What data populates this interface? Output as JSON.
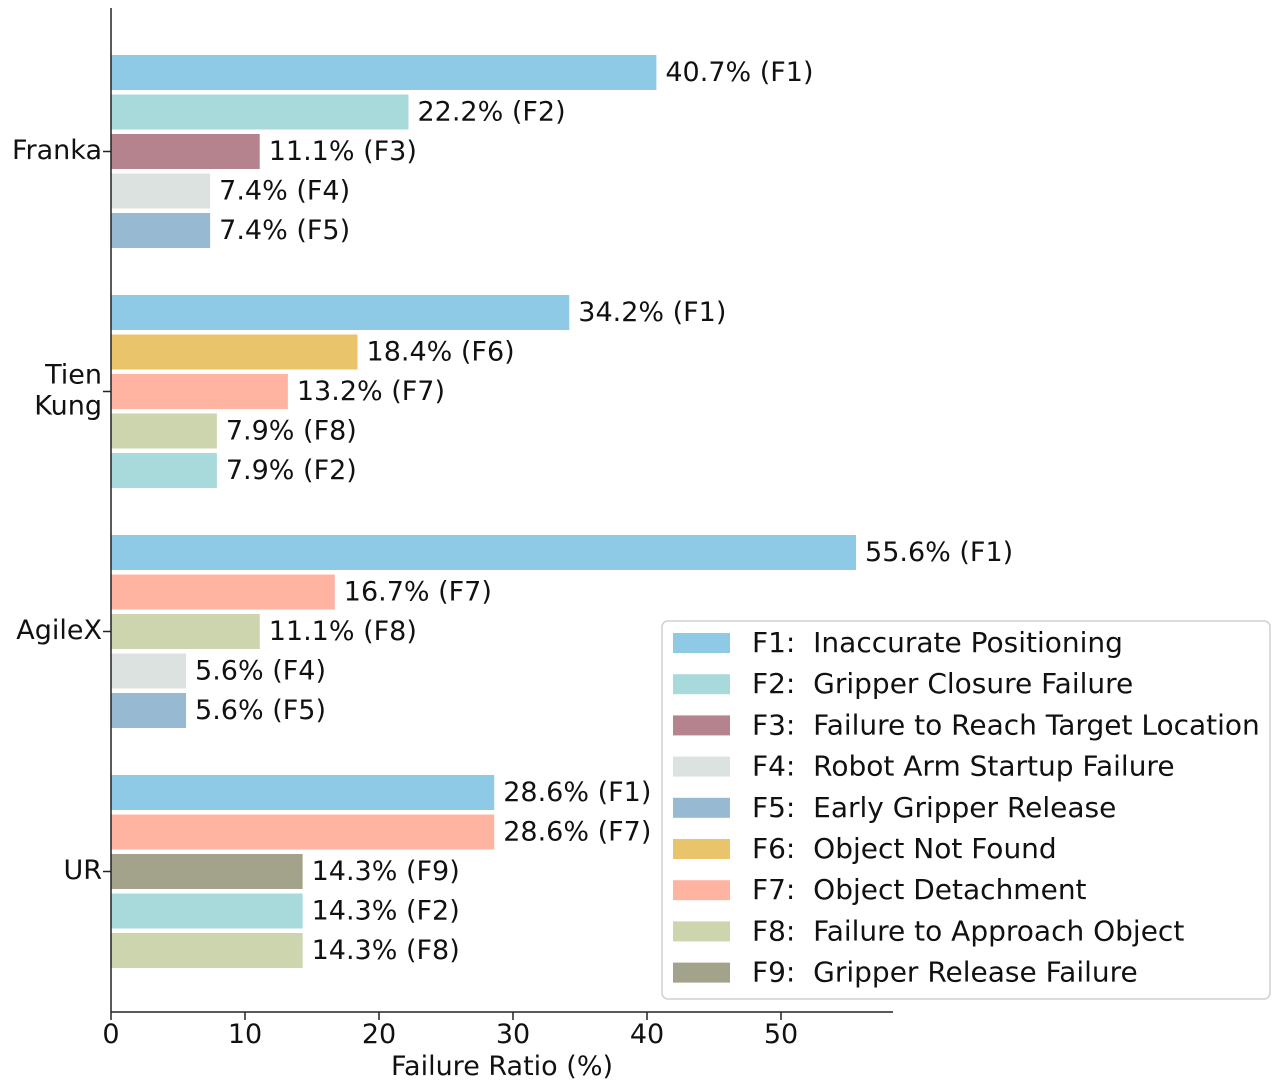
{
  "chart_data": {
    "type": "bar",
    "orientation": "horizontal",
    "xlabel": "Failure Ratio (%)",
    "ylabel": "",
    "xlim": [
      0,
      58
    ],
    "xticks": [
      0,
      10,
      20,
      30,
      40,
      50
    ],
    "grid": false,
    "legend_position": "bottom-right",
    "categories": [
      {
        "name": "Franka",
        "lines": [
          "Franka"
        ],
        "bars": [
          {
            "code": "F1",
            "value": 40.7,
            "label": "40.7% (F1)"
          },
          {
            "code": "F2",
            "value": 22.2,
            "label": "22.2% (F2)"
          },
          {
            "code": "F3",
            "value": 11.1,
            "label": "11.1% (F3)"
          },
          {
            "code": "F4",
            "value": 7.4,
            "label": "7.4% (F4)"
          },
          {
            "code": "F5",
            "value": 7.4,
            "label": "7.4% (F5)"
          }
        ]
      },
      {
        "name": "Tien Kung",
        "lines": [
          "Tien",
          "Kung"
        ],
        "bars": [
          {
            "code": "F1",
            "value": 34.2,
            "label": "34.2% (F1)"
          },
          {
            "code": "F6",
            "value": 18.4,
            "label": "18.4% (F6)"
          },
          {
            "code": "F7",
            "value": 13.2,
            "label": "13.2% (F7)"
          },
          {
            "code": "F8",
            "value": 7.9,
            "label": "7.9% (F8)"
          },
          {
            "code": "F2",
            "value": 7.9,
            "label": "7.9% (F2)"
          }
        ]
      },
      {
        "name": "AgileX",
        "lines": [
          "AgileX"
        ],
        "bars": [
          {
            "code": "F1",
            "value": 55.6,
            "label": "55.6% (F1)"
          },
          {
            "code": "F7",
            "value": 16.7,
            "label": "16.7% (F7)"
          },
          {
            "code": "F8",
            "value": 11.1,
            "label": "11.1% (F8)"
          },
          {
            "code": "F4",
            "value": 5.6,
            "label": "5.6% (F4)"
          },
          {
            "code": "F5",
            "value": 5.6,
            "label": "5.6% (F5)"
          }
        ]
      },
      {
        "name": "UR",
        "lines": [
          "UR"
        ],
        "bars": [
          {
            "code": "F1",
            "value": 28.6,
            "label": "28.6% (F1)"
          },
          {
            "code": "F7",
            "value": 28.6,
            "label": "28.6% (F7)"
          },
          {
            "code": "F9",
            "value": 14.3,
            "label": "14.3% (F9)"
          },
          {
            "code": "F2",
            "value": 14.3,
            "label": "14.3% (F2)"
          },
          {
            "code": "F8",
            "value": 14.3,
            "label": "14.3% (F8)"
          }
        ]
      }
    ],
    "legend": [
      {
        "code": "F1",
        "label": "F1:  Inaccurate Positioning",
        "color": "#8ecae6"
      },
      {
        "code": "F2",
        "label": "F2:  Gripper Closure Failure",
        "color": "#a8dadc"
      },
      {
        "code": "F3",
        "label": "F3:  Failure to Reach Target Location",
        "color": "#b5838d"
      },
      {
        "code": "F4",
        "label": "F4:  Robot Arm Startup Failure",
        "color": "#dbe2df"
      },
      {
        "code": "F5",
        "label": "F5:  Early Gripper Release",
        "color": "#98b9d2"
      },
      {
        "code": "F6",
        "label": "F6:  Object Not Found",
        "color": "#e9c46a"
      },
      {
        "code": "F7",
        "label": "F7:  Object Detachment",
        "color": "#ffb4a2"
      },
      {
        "code": "F8",
        "label": "F8:  Failure to Approach Object",
        "color": "#cdd5ae"
      },
      {
        "code": "F9",
        "label": "F9:  Gripper Release Failure",
        "color": "#a3a38b"
      }
    ]
  }
}
